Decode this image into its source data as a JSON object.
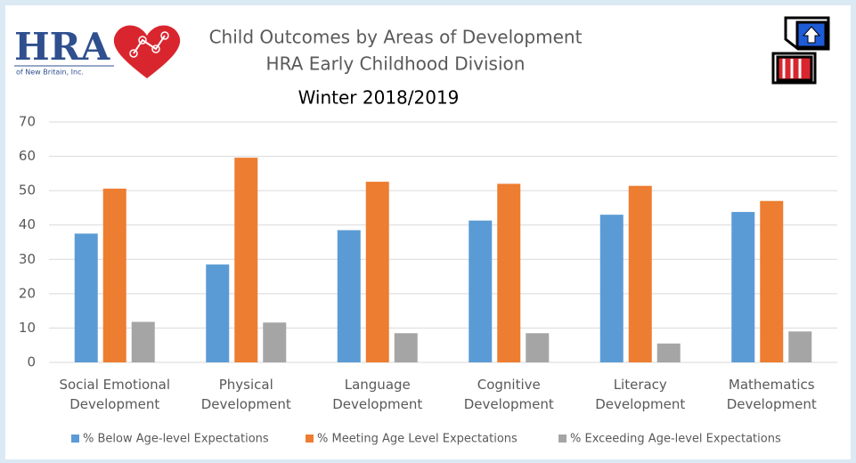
{
  "logo": {
    "name": "HRA",
    "tagline": "of New Britain, Inc."
  },
  "chart_data": {
    "type": "bar",
    "title": "Child Outcomes by Areas of Development",
    "subtitle": "HRA Early Childhood Division",
    "period": "Winter 2018/2019",
    "categories": [
      "Social Emotional\nDevelopment",
      "Physical\nDevelopment",
      "Language\nDevelopment",
      "Cognitive\nDevelopment",
      "Literacy\nDevelopment",
      "Mathematics\nDevelopment"
    ],
    "series": [
      {
        "name": "% Below Age-level Expectations",
        "color": "#5b9bd5",
        "values": [
          37.5,
          28.5,
          38.5,
          41.3,
          43,
          43.8
        ]
      },
      {
        "name": "% Meeting Age Level Expectations",
        "color": "#ed7d31",
        "values": [
          50.6,
          59.6,
          52.6,
          52,
          51.4,
          47
        ]
      },
      {
        "name": "% Exceeding Age-level Expectations",
        "color": "#a5a5a5",
        "values": [
          11.8,
          11.6,
          8.5,
          8.5,
          5.5,
          9
        ]
      }
    ],
    "ylim": [
      0,
      70
    ],
    "yticks": [
      0,
      10,
      20,
      30,
      40,
      50,
      60,
      70
    ],
    "grid": true,
    "legend": "bottom"
  }
}
